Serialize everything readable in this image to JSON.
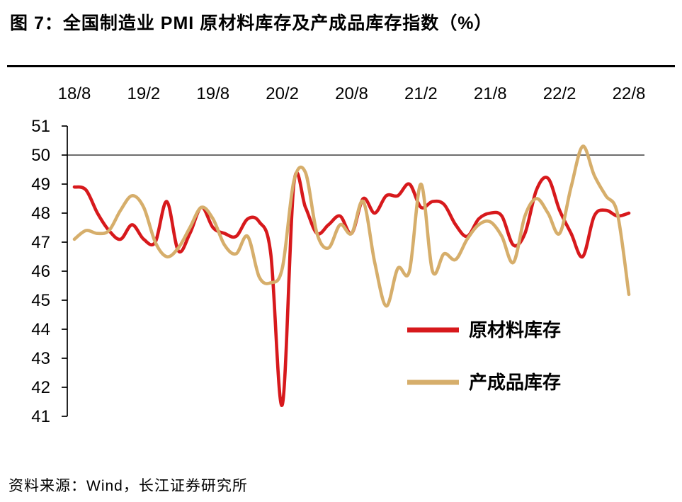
{
  "figure": {
    "title": "图 7：全国制造业 PMI 原材料库存及产成品库存指数（%）",
    "source": "资料来源：Wind，长江证券研究所"
  },
  "chart_data": {
    "type": "line",
    "title": "全国制造业PMI原材料库存及产成品库存指数（%）",
    "unit": "%",
    "xlabel": "",
    "ylabel": "",
    "x_axis_side": "top",
    "y_axis_side": "left",
    "grid": false,
    "legend_position": "inside-center-right",
    "ylim": [
      41,
      51
    ],
    "reference_line": 50,
    "y_ticks": [
      51,
      50,
      49,
      48,
      47,
      46,
      45,
      44,
      43,
      42,
      41
    ],
    "x_tick_labels": [
      "18/8",
      "19/2",
      "19/8",
      "20/2",
      "20/8",
      "21/2",
      "21/8",
      "22/2",
      "22/8"
    ],
    "x_tick_indices": [
      0,
      6,
      12,
      18,
      24,
      30,
      36,
      42,
      48
    ],
    "x": [
      "18/8",
      "18/9",
      "18/10",
      "18/11",
      "18/12",
      "19/1",
      "19/2",
      "19/3",
      "19/4",
      "19/5",
      "19/6",
      "19/7",
      "19/8",
      "19/9",
      "19/10",
      "19/11",
      "19/12",
      "20/1",
      "20/2",
      "20/3",
      "20/4",
      "20/5",
      "20/6",
      "20/7",
      "20/8",
      "20/9",
      "20/10",
      "20/11",
      "20/12",
      "21/1",
      "21/2",
      "21/3",
      "21/4",
      "21/5",
      "21/6",
      "21/7",
      "21/8",
      "21/9",
      "21/10",
      "21/11",
      "21/12",
      "22/1",
      "22/2",
      "22/3",
      "22/4",
      "22/5",
      "22/6",
      "22/7",
      "22/8"
    ],
    "series": [
      {
        "id": "raw-materials-inventory",
        "name": "原材料库存",
        "color": "#d7191c",
        "values": [
          48.9,
          48.8,
          48.0,
          47.4,
          47.1,
          47.6,
          47.1,
          47.0,
          48.4,
          46.7,
          47.3,
          48.2,
          47.5,
          47.3,
          47.2,
          47.8,
          47.7,
          46.6,
          41.4,
          49.0,
          48.2,
          47.3,
          47.6,
          47.9,
          47.3,
          48.5,
          48.0,
          48.6,
          48.6,
          49.0,
          48.2,
          48.4,
          48.3,
          47.6,
          47.2,
          47.8,
          48.0,
          47.9,
          46.9,
          47.3,
          48.8,
          49.2,
          48.1,
          47.3,
          46.5,
          47.9,
          48.1,
          47.9,
          48.0
        ]
      },
      {
        "id": "finished-goods-inventory",
        "name": "产成品库存",
        "color": "#d6ae6b",
        "values": [
          47.1,
          47.4,
          47.3,
          47.4,
          48.1,
          48.6,
          48.2,
          47.0,
          46.5,
          46.8,
          47.5,
          48.2,
          47.8,
          46.9,
          46.6,
          47.2,
          45.8,
          45.6,
          46.1,
          49.1,
          49.4,
          47.3,
          46.8,
          47.6,
          47.3,
          48.4,
          46.3,
          44.8,
          46.1,
          46.0,
          49.0,
          46.0,
          46.6,
          46.4,
          47.1,
          47.6,
          47.7,
          47.2,
          46.3,
          47.9,
          48.5,
          48.0,
          47.3,
          48.9,
          50.3,
          49.3,
          48.6,
          48.0,
          45.2
        ]
      }
    ]
  }
}
